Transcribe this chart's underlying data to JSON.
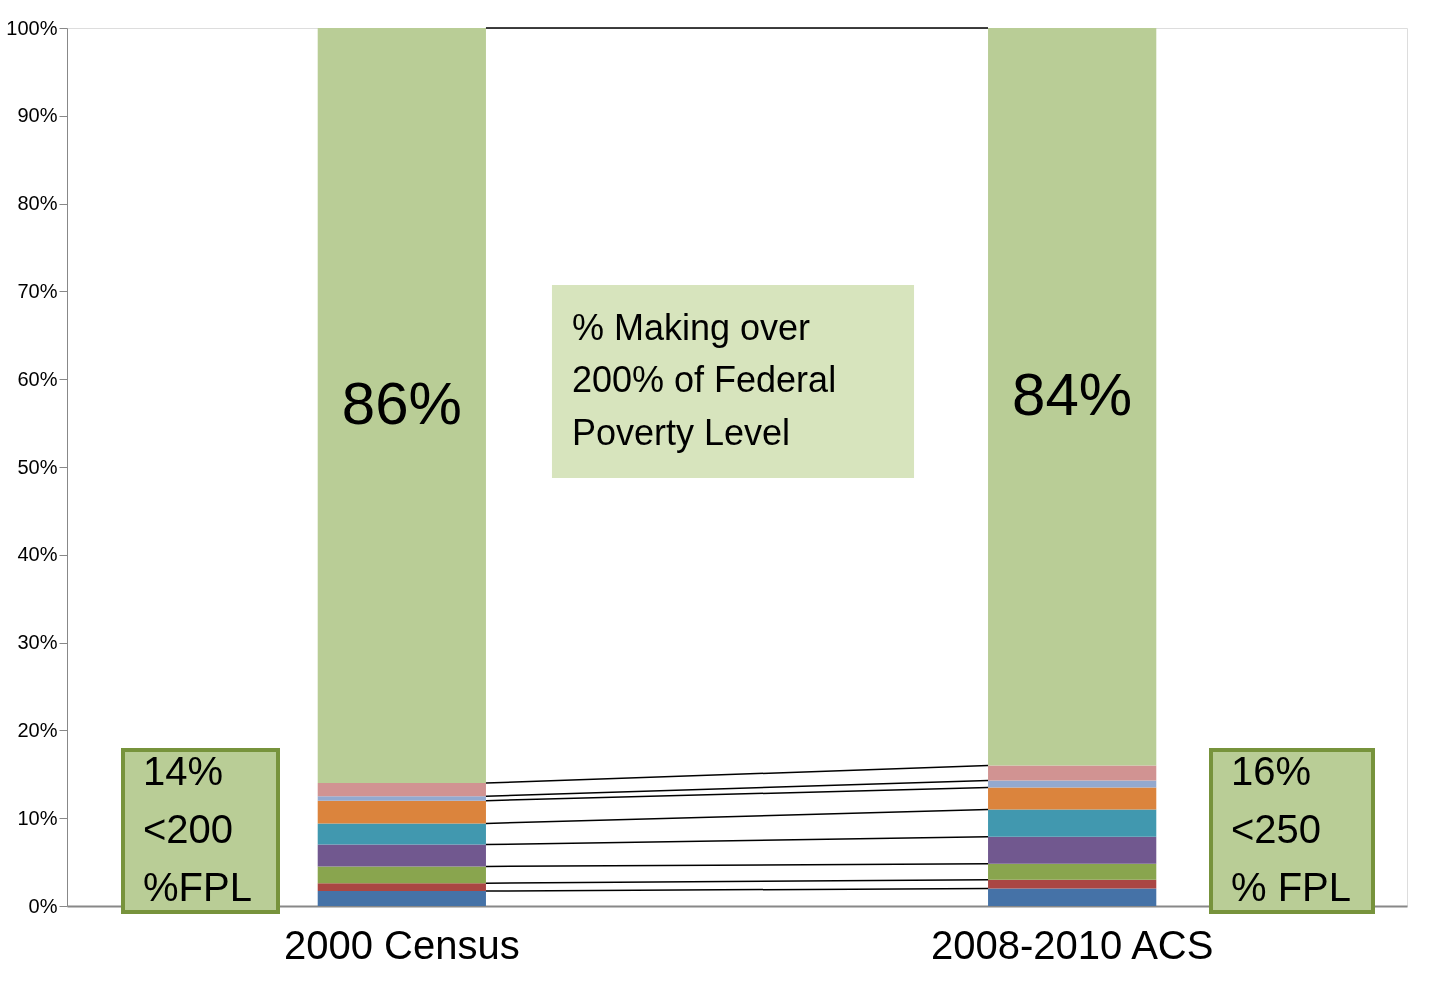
{
  "chart_data": {
    "type": "bar",
    "stacked": true,
    "categories": [
      "2000 Census",
      "2008-2010 ACS"
    ],
    "series": [
      {
        "color": "#4572a7",
        "values": [
          1.7,
          2.0
        ]
      },
      {
        "color": "#aa4643",
        "values": [
          0.9,
          1.0
        ]
      },
      {
        "color": "#89a54e",
        "values": [
          1.9,
          1.8
        ]
      },
      {
        "color": "#71588f",
        "values": [
          2.5,
          3.1
        ]
      },
      {
        "color": "#4198af",
        "values": [
          2.4,
          3.1
        ]
      },
      {
        "color": "#db843d",
        "values": [
          2.6,
          2.5
        ]
      },
      {
        "color": "#93a9cf",
        "values": [
          0.5,
          0.8
        ]
      },
      {
        "color": "#d19392",
        "values": [
          1.5,
          1.7
        ]
      },
      {
        "color": "#b9cd96",
        "values": [
          86,
          84
        ],
        "value_labels": [
          "86%",
          "84%"
        ]
      }
    ],
    "ylim": [
      0,
      100
    ],
    "yticks": [
      {
        "value": 0,
        "label": "0%"
      },
      {
        "value": 10,
        "label": "10%"
      },
      {
        "value": 20,
        "label": "20%"
      },
      {
        "value": 30,
        "label": "30%"
      },
      {
        "value": 40,
        "label": "40%"
      },
      {
        "value": 50,
        "label": "50%"
      },
      {
        "value": 60,
        "label": "60%"
      },
      {
        "value": 70,
        "label": "70%"
      },
      {
        "value": 80,
        "label": "80%"
      },
      {
        "value": 90,
        "label": "90%"
      },
      {
        "value": 100,
        "label": "100%"
      }
    ],
    "grid": false,
    "legend": false,
    "annotations": [
      "% Making over\n200% of Federal\nPoverty Level",
      "14%\n<200\n%FPL",
      "16%\n<250\n% FPL"
    ]
  }
}
